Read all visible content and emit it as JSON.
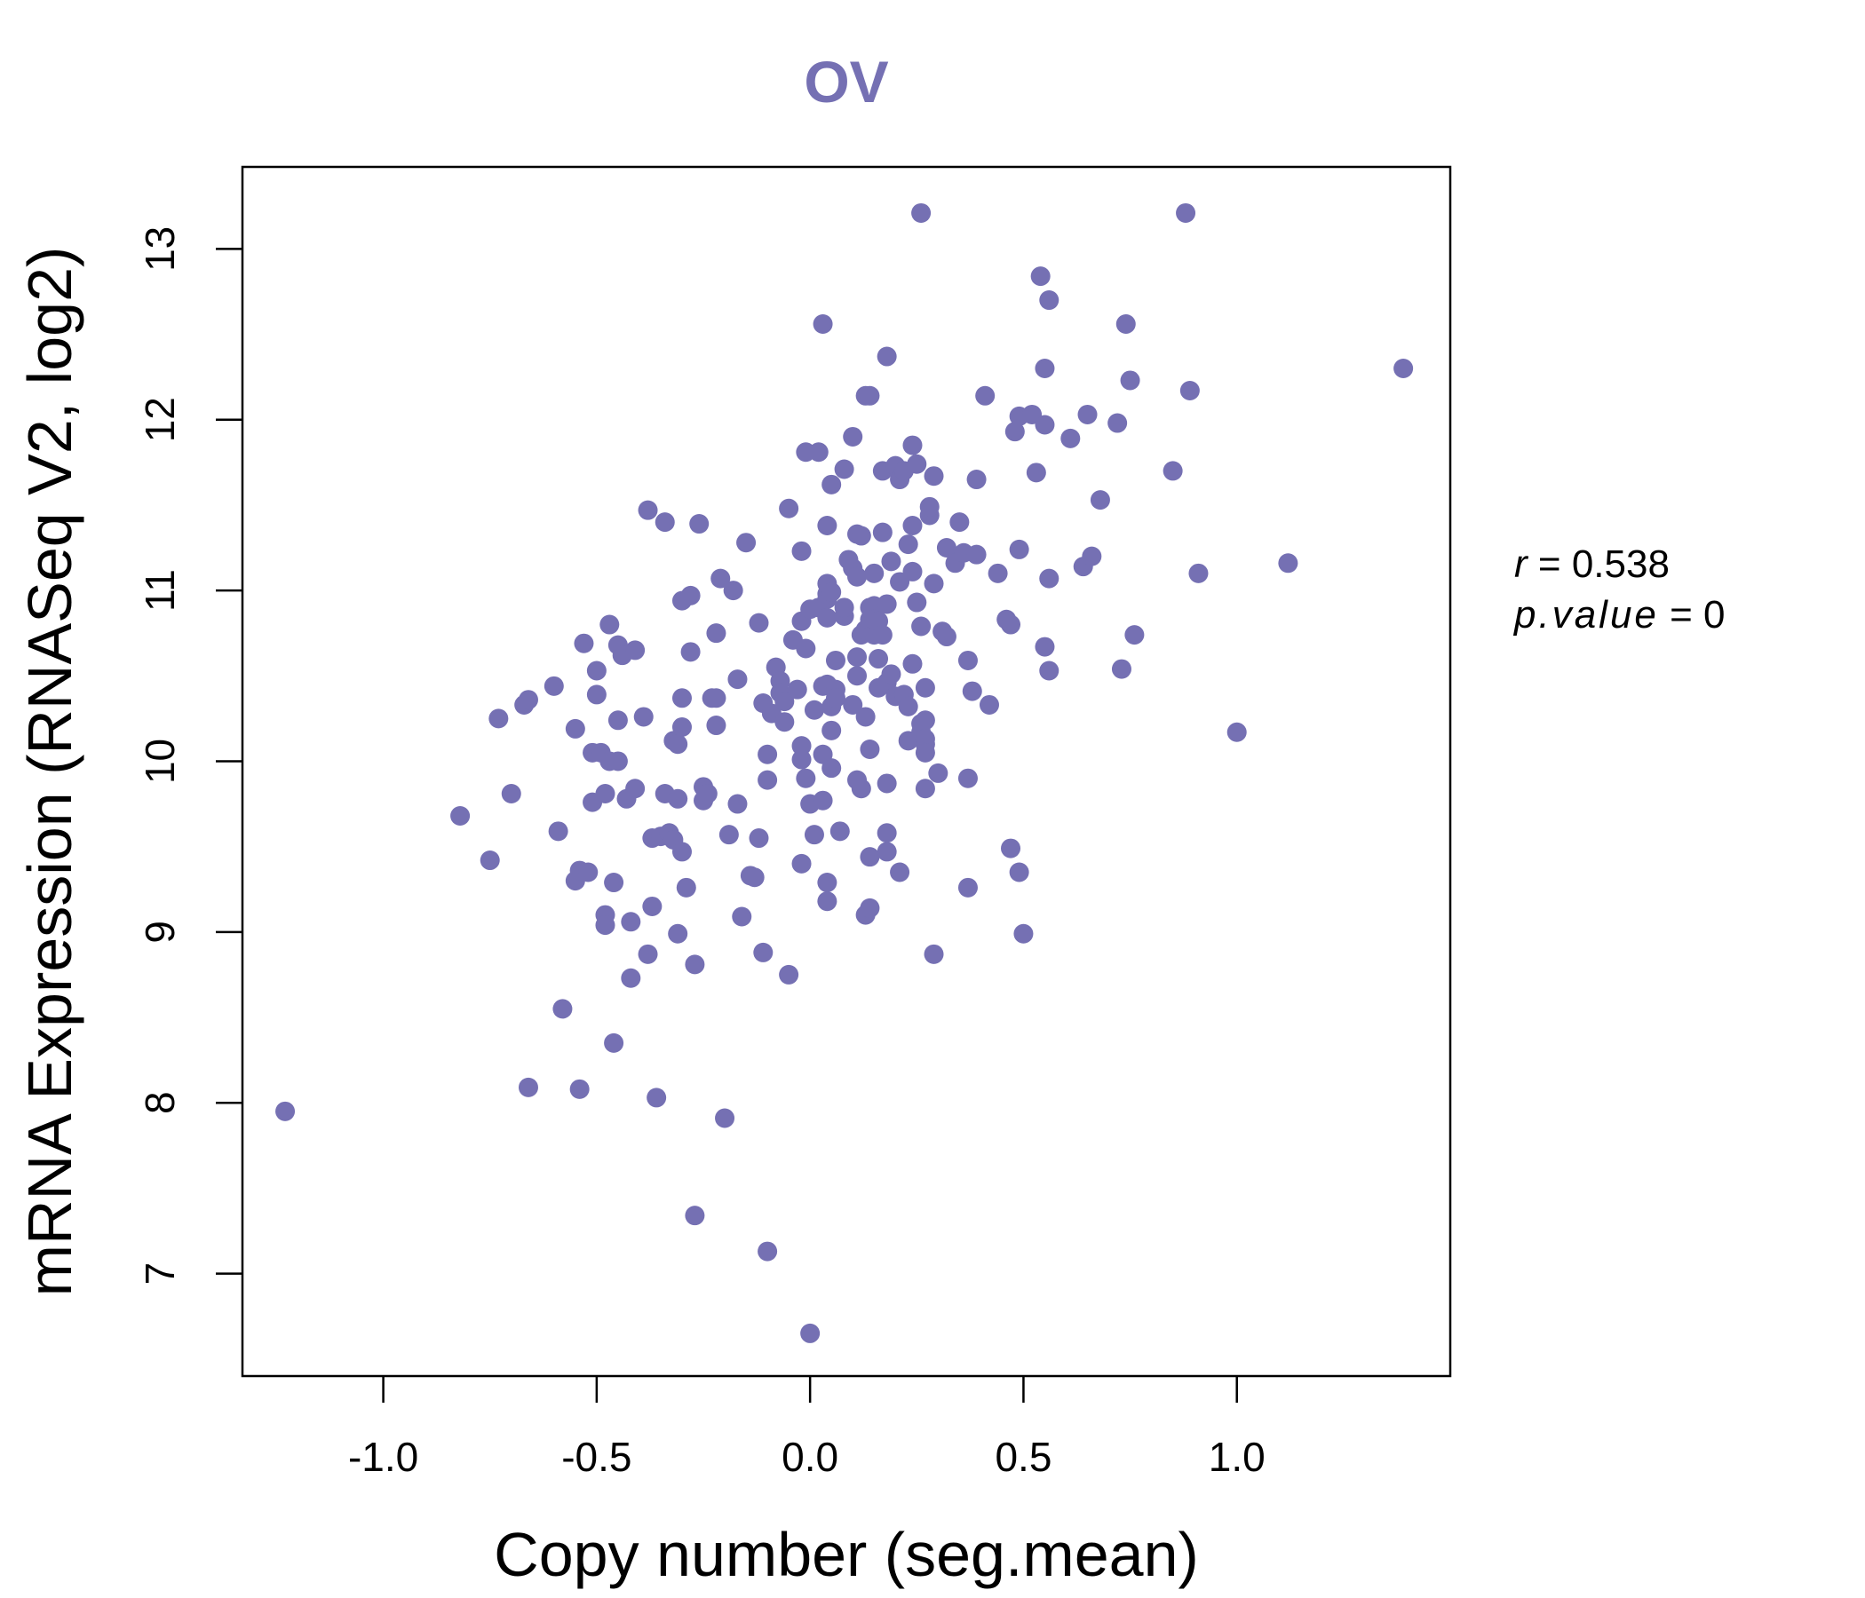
{
  "chart_data": {
    "type": "scatter",
    "title": "OV",
    "xlabel": "Copy number (seg.mean)",
    "ylabel": "mRNA Expression (RNASeq V2, log2)",
    "xlim": [
      -1.33,
      1.5
    ],
    "ylim": [
      6.4,
      13.48
    ],
    "xticks": [
      -1.0,
      -0.5,
      0.0,
      0.5,
      1.0
    ],
    "xtick_labels": [
      "-1.0",
      "-0.5",
      "0.0",
      "0.5",
      "1.0"
    ],
    "yticks": [
      7,
      8,
      9,
      10,
      11,
      12,
      13
    ],
    "ytick_labels": [
      "7",
      "8",
      "9",
      "10",
      "11",
      "12",
      "13"
    ],
    "grid": false,
    "legend": "none",
    "point_color": "#7570b3",
    "annotations": {
      "r_label": "r",
      "r_value": "0.538",
      "p_label": "p.value",
      "p_value": "0"
    },
    "points": [
      [
        -1.23,
        7.95
      ],
      [
        -0.82,
        9.68
      ],
      [
        -0.75,
        9.42
      ],
      [
        -0.73,
        10.25
      ],
      [
        -0.7,
        9.81
      ],
      [
        -0.67,
        10.33
      ],
      [
        -0.66,
        10.36
      ],
      [
        -0.66,
        8.09
      ],
      [
        -0.6,
        10.44
      ],
      [
        -0.59,
        9.59
      ],
      [
        -0.58,
        8.55
      ],
      [
        -0.55,
        10.19
      ],
      [
        -0.55,
        9.3
      ],
      [
        -0.54,
        9.36
      ],
      [
        -0.54,
        8.08
      ],
      [
        -0.53,
        10.69
      ],
      [
        -0.52,
        9.35
      ],
      [
        -0.51,
        10.05
      ],
      [
        -0.51,
        9.76
      ],
      [
        -0.5,
        10.39
      ],
      [
        -0.5,
        10.53
      ],
      [
        -0.49,
        10.05
      ],
      [
        -0.48,
        9.81
      ],
      [
        -0.48,
        9.1
      ],
      [
        -0.48,
        9.04
      ],
      [
        -0.47,
        10.0
      ],
      [
        -0.47,
        10.8
      ],
      [
        -0.46,
        8.35
      ],
      [
        -0.46,
        9.29
      ],
      [
        -0.45,
        10.68
      ],
      [
        -0.45,
        10.0
      ],
      [
        -0.45,
        10.24
      ],
      [
        -0.44,
        10.62
      ],
      [
        -0.43,
        9.78
      ],
      [
        -0.42,
        9.06
      ],
      [
        -0.42,
        8.73
      ],
      [
        -0.41,
        10.65
      ],
      [
        -0.41,
        9.84
      ],
      [
        -0.39,
        10.26
      ],
      [
        -0.38,
        11.47
      ],
      [
        -0.38,
        8.87
      ],
      [
        -0.37,
        9.55
      ],
      [
        -0.37,
        9.15
      ],
      [
        -0.36,
        8.03
      ],
      [
        -0.35,
        9.56
      ],
      [
        -0.34,
        11.4
      ],
      [
        -0.34,
        9.81
      ],
      [
        -0.33,
        9.58
      ],
      [
        -0.32,
        9.54
      ],
      [
        -0.32,
        10.12
      ],
      [
        -0.31,
        8.99
      ],
      [
        -0.31,
        10.1
      ],
      [
        -0.31,
        9.78
      ],
      [
        -0.3,
        10.2
      ],
      [
        -0.3,
        9.47
      ],
      [
        -0.3,
        10.94
      ],
      [
        -0.3,
        10.37
      ],
      [
        -0.29,
        9.26
      ],
      [
        -0.28,
        10.97
      ],
      [
        -0.28,
        10.64
      ],
      [
        -0.27,
        8.81
      ],
      [
        -0.27,
        7.34
      ],
      [
        -0.26,
        11.39
      ],
      [
        -0.25,
        9.85
      ],
      [
        -0.25,
        9.77
      ],
      [
        -0.24,
        9.81
      ],
      [
        -0.23,
        10.37
      ],
      [
        -0.22,
        10.75
      ],
      [
        -0.22,
        10.21
      ],
      [
        -0.22,
        10.37
      ],
      [
        -0.21,
        11.07
      ],
      [
        -0.2,
        7.91
      ],
      [
        -0.19,
        9.57
      ],
      [
        -0.18,
        11.0
      ],
      [
        -0.17,
        10.48
      ],
      [
        -0.17,
        9.75
      ],
      [
        -0.16,
        9.09
      ],
      [
        -0.15,
        11.28
      ],
      [
        -0.14,
        9.33
      ],
      [
        -0.13,
        9.32
      ],
      [
        -0.12,
        10.81
      ],
      [
        -0.12,
        9.55
      ],
      [
        -0.11,
        8.88
      ],
      [
        -0.11,
        10.34
      ],
      [
        -0.1,
        9.89
      ],
      [
        -0.1,
        10.04
      ],
      [
        -0.1,
        7.13
      ],
      [
        -0.09,
        10.28
      ],
      [
        -0.08,
        10.55
      ],
      [
        -0.07,
        10.47
      ],
      [
        -0.07,
        10.4
      ],
      [
        -0.06,
        10.35
      ],
      [
        -0.06,
        10.23
      ],
      [
        -0.05,
        11.48
      ],
      [
        -0.05,
        8.75
      ],
      [
        -0.04,
        10.71
      ],
      [
        -0.03,
        10.42
      ],
      [
        -0.02,
        10.82
      ],
      [
        -0.02,
        11.23
      ],
      [
        -0.02,
        9.4
      ],
      [
        -0.02,
        10.09
      ],
      [
        -0.02,
        10.01
      ],
      [
        -0.01,
        9.9
      ],
      [
        -0.01,
        11.81
      ],
      [
        -0.01,
        10.66
      ],
      [
        0.0,
        10.89
      ],
      [
        0.0,
        9.75
      ],
      [
        0.0,
        6.65
      ],
      [
        0.01,
        10.3
      ],
      [
        0.01,
        9.57
      ],
      [
        0.02,
        10.9
      ],
      [
        0.02,
        11.81
      ],
      [
        0.03,
        12.56
      ],
      [
        0.03,
        9.77
      ],
      [
        0.03,
        10.04
      ],
      [
        0.03,
        10.44
      ],
      [
        0.04,
        9.18
      ],
      [
        0.04,
        10.95
      ],
      [
        0.04,
        10.84
      ],
      [
        0.04,
        10.98
      ],
      [
        0.04,
        10.45
      ],
      [
        0.04,
        11.38
      ],
      [
        0.04,
        9.29
      ],
      [
        0.04,
        11.04
      ],
      [
        0.05,
        9.96
      ],
      [
        0.05,
        10.18
      ],
      [
        0.05,
        11.62
      ],
      [
        0.05,
        10.32
      ],
      [
        0.05,
        10.99
      ],
      [
        0.06,
        10.59
      ],
      [
        0.06,
        10.42
      ],
      [
        0.06,
        10.37
      ],
      [
        0.07,
        9.59
      ],
      [
        0.08,
        11.71
      ],
      [
        0.08,
        10.85
      ],
      [
        0.08,
        10.9
      ],
      [
        0.09,
        11.18
      ],
      [
        0.1,
        10.33
      ],
      [
        0.1,
        11.13
      ],
      [
        0.1,
        11.9
      ],
      [
        0.11,
        10.61
      ],
      [
        0.11,
        11.08
      ],
      [
        0.11,
        9.89
      ],
      [
        0.11,
        10.5
      ],
      [
        0.11,
        11.33
      ],
      [
        0.12,
        10.74
      ],
      [
        0.12,
        9.84
      ],
      [
        0.12,
        11.32
      ],
      [
        0.13,
        9.1
      ],
      [
        0.13,
        12.14
      ],
      [
        0.13,
        10.26
      ],
      [
        0.13,
        10.77
      ],
      [
        0.14,
        10.9
      ],
      [
        0.14,
        9.44
      ],
      [
        0.14,
        12.14
      ],
      [
        0.14,
        10.07
      ],
      [
        0.14,
        10.83
      ],
      [
        0.14,
        9.14
      ],
      [
        0.15,
        10.74
      ],
      [
        0.15,
        10.91
      ],
      [
        0.15,
        10.83
      ],
      [
        0.15,
        11.1
      ],
      [
        0.16,
        10.43
      ],
      [
        0.16,
        10.82
      ],
      [
        0.16,
        10.6
      ],
      [
        0.17,
        11.7
      ],
      [
        0.17,
        10.74
      ],
      [
        0.17,
        11.34
      ],
      [
        0.18,
        12.37
      ],
      [
        0.18,
        10.92
      ],
      [
        0.18,
        9.47
      ],
      [
        0.18,
        10.46
      ],
      [
        0.18,
        9.87
      ],
      [
        0.18,
        9.58
      ],
      [
        0.19,
        11.17
      ],
      [
        0.19,
        10.51
      ],
      [
        0.2,
        11.73
      ],
      [
        0.2,
        10.38
      ],
      [
        0.21,
        9.35
      ],
      [
        0.21,
        11.65
      ],
      [
        0.21,
        11.05
      ],
      [
        0.22,
        11.7
      ],
      [
        0.22,
        10.39
      ],
      [
        0.23,
        11.27
      ],
      [
        0.23,
        10.32
      ],
      [
        0.23,
        10.12
      ],
      [
        0.24,
        11.11
      ],
      [
        0.24,
        10.57
      ],
      [
        0.24,
        11.85
      ],
      [
        0.24,
        11.38
      ],
      [
        0.25,
        11.74
      ],
      [
        0.25,
        10.93
      ],
      [
        0.26,
        13.21
      ],
      [
        0.26,
        10.79
      ],
      [
        0.26,
        10.22
      ],
      [
        0.26,
        10.17
      ],
      [
        0.27,
        10.1
      ],
      [
        0.27,
        9.84
      ],
      [
        0.27,
        10.43
      ],
      [
        0.27,
        10.24
      ],
      [
        0.27,
        10.13
      ],
      [
        0.27,
        10.05
      ],
      [
        0.28,
        11.44
      ],
      [
        0.28,
        11.49
      ],
      [
        0.29,
        8.87
      ],
      [
        0.29,
        11.67
      ],
      [
        0.29,
        11.04
      ],
      [
        0.3,
        9.93
      ],
      [
        0.31,
        10.76
      ],
      [
        0.32,
        10.73
      ],
      [
        0.32,
        11.25
      ],
      [
        0.34,
        11.16
      ],
      [
        0.35,
        11.4
      ],
      [
        0.36,
        11.22
      ],
      [
        0.37,
        10.59
      ],
      [
        0.37,
        9.9
      ],
      [
        0.37,
        9.26
      ],
      [
        0.38,
        10.41
      ],
      [
        0.39,
        11.21
      ],
      [
        0.39,
        11.65
      ],
      [
        0.41,
        12.14
      ],
      [
        0.42,
        10.33
      ],
      [
        0.44,
        11.1
      ],
      [
        0.46,
        10.83
      ],
      [
        0.47,
        10.8
      ],
      [
        0.47,
        9.49
      ],
      [
        0.48,
        11.93
      ],
      [
        0.49,
        9.35
      ],
      [
        0.49,
        12.02
      ],
      [
        0.49,
        11.24
      ],
      [
        0.5,
        8.99
      ],
      [
        0.52,
        12.03
      ],
      [
        0.53,
        11.69
      ],
      [
        0.54,
        12.84
      ],
      [
        0.55,
        10.67
      ],
      [
        0.55,
        11.97
      ],
      [
        0.55,
        12.3
      ],
      [
        0.56,
        10.53
      ],
      [
        0.56,
        12.7
      ],
      [
        0.56,
        11.07
      ],
      [
        0.61,
        11.89
      ],
      [
        0.64,
        11.14
      ],
      [
        0.65,
        12.03
      ],
      [
        0.66,
        11.2
      ],
      [
        0.68,
        11.53
      ],
      [
        0.72,
        11.98
      ],
      [
        0.73,
        10.54
      ],
      [
        0.74,
        12.56
      ],
      [
        0.75,
        12.23
      ],
      [
        0.76,
        10.74
      ],
      [
        0.85,
        11.7
      ],
      [
        0.88,
        13.21
      ],
      [
        0.89,
        12.17
      ],
      [
        0.91,
        11.1
      ],
      [
        1.0,
        10.17
      ],
      [
        1.12,
        11.16
      ],
      [
        1.39,
        12.3
      ]
    ]
  }
}
